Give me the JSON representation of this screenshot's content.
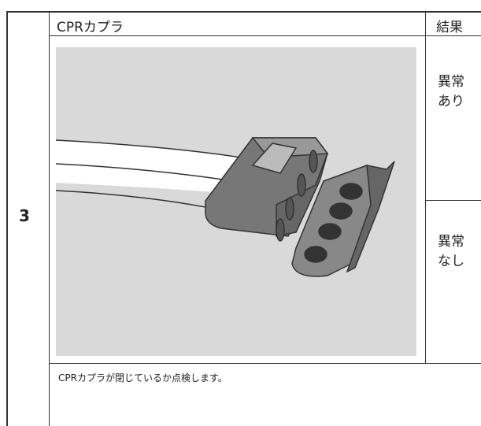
{
  "step": "3",
  "header": {
    "title": "CPRカプラ",
    "result": "結果"
  },
  "results": [
    [
      "異常",
      "あり"
    ],
    [
      "異常",
      "なし"
    ]
  ],
  "description": "CPRカプラが閉じているか点検します。"
}
